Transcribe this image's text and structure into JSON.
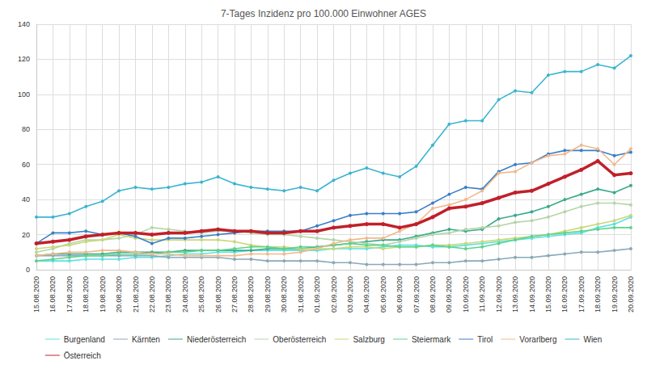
{
  "chart_data": {
    "type": "line",
    "title": "7-Tages Inzidenz pro 100.000 Einwohner AGES",
    "categories": [
      "15.08.2020",
      "16.08.2020",
      "17.08.2020",
      "18.08.2020",
      "19.08.2020",
      "20.08.2020",
      "21.08.2020",
      "22.08.2020",
      "23.08.2020",
      "24.08.2020",
      "25.08.2020",
      "26.08.2020",
      "27.08.2020",
      "28.08.2020",
      "29.08.2020",
      "30.08.2020",
      "31.08.2020",
      "01.09.2020",
      "02.09.2020",
      "03.09.2020",
      "04.09.2020",
      "05.09.2020",
      "06.09.2020",
      "07.09.2020",
      "08.09.2020",
      "09.09.2020",
      "10.09.2020",
      "11.09.2020",
      "12.09.2020",
      "13.09.2020",
      "14.09.2020",
      "15.09.2020",
      "16.09.2020",
      "17.09.2020",
      "18.09.2020",
      "19.09.2020",
      "20.09.2020"
    ],
    "series": [
      {
        "name": "Burgenland",
        "color": "#5ee0e0",
        "values": [
          5,
          5,
          5,
          6,
          6,
          6,
          7,
          7,
          8,
          9,
          9,
          10,
          10,
          11,
          11,
          11,
          11,
          11,
          12,
          12,
          12,
          13,
          14,
          14,
          13,
          13,
          14,
          15,
          16,
          17,
          18,
          19,
          20,
          21,
          24,
          26,
          30
        ]
      },
      {
        "name": "Kärnten",
        "color": "#8aa9b8",
        "values": [
          8,
          8,
          8,
          8,
          8,
          8,
          8,
          8,
          7,
          7,
          7,
          7,
          6,
          6,
          5,
          5,
          5,
          5,
          4,
          4,
          3,
          3,
          3,
          3,
          4,
          4,
          5,
          5,
          6,
          7,
          7,
          8,
          9,
          10,
          10,
          11,
          12
        ]
      },
      {
        "name": "Niederösterreich",
        "color": "#3aaa8a",
        "values": [
          8,
          9,
          9,
          9,
          9,
          10,
          10,
          10,
          10,
          11,
          11,
          11,
          11,
          11,
          12,
          12,
          12,
          13,
          14,
          15,
          16,
          17,
          17,
          19,
          21,
          23,
          22,
          23,
          29,
          31,
          33,
          36,
          40,
          43,
          46,
          44,
          48
        ]
      },
      {
        "name": "Oberösterreich",
        "color": "#b5d5a8",
        "values": [
          10,
          12,
          15,
          17,
          17,
          18,
          20,
          24,
          23,
          22,
          21,
          22,
          22,
          21,
          20,
          20,
          19,
          18,
          17,
          16,
          15,
          14,
          16,
          18,
          20,
          21,
          23,
          24,
          25,
          27,
          28,
          30,
          33,
          36,
          38,
          38,
          37
        ]
      },
      {
        "name": "Salzburg",
        "color": "#c8d87a",
        "values": [
          12,
          13,
          14,
          16,
          17,
          20,
          18,
          17,
          17,
          17,
          17,
          17,
          16,
          14,
          13,
          13,
          12,
          12,
          12,
          13,
          13,
          12,
          13,
          13,
          14,
          14,
          15,
          16,
          17,
          18,
          19,
          20,
          22,
          24,
          26,
          28,
          31
        ]
      },
      {
        "name": "Steiermark",
        "color": "#5ed38c",
        "values": [
          5,
          6,
          7,
          8,
          8,
          9,
          9,
          9,
          10,
          10,
          11,
          11,
          12,
          13,
          13,
          12,
          13,
          13,
          14,
          15,
          14,
          14,
          13,
          13,
          14,
          13,
          12,
          13,
          15,
          17,
          19,
          20,
          21,
          22,
          23,
          24,
          24
        ]
      },
      {
        "name": "Tirol",
        "color": "#3a7fc8",
        "values": [
          15,
          21,
          21,
          22,
          20,
          21,
          19,
          15,
          18,
          18,
          19,
          20,
          21,
          22,
          22,
          22,
          22,
          25,
          28,
          31,
          32,
          32,
          32,
          33,
          38,
          43,
          47,
          46,
          56,
          60,
          61,
          66,
          68,
          68,
          68,
          65,
          67
        ]
      },
      {
        "name": "Vorarlberg",
        "color": "#f2b88a",
        "values": [
          8,
          9,
          10,
          10,
          11,
          11,
          10,
          9,
          9,
          8,
          8,
          8,
          8,
          9,
          9,
          9,
          10,
          12,
          15,
          17,
          18,
          18,
          22,
          26,
          35,
          37,
          40,
          45,
          55,
          56,
          61,
          65,
          66,
          71,
          69,
          60,
          69
        ]
      },
      {
        "name": "Wien",
        "color": "#3bb5d0",
        "values": [
          30,
          30,
          32,
          36,
          39,
          45,
          47,
          46,
          47,
          49,
          50,
          53,
          49,
          47,
          46,
          45,
          47,
          45,
          51,
          55,
          58,
          55,
          53,
          59,
          71,
          83,
          85,
          85,
          97,
          102,
          101,
          111,
          113,
          113,
          117,
          115,
          122
        ]
      },
      {
        "name": "Österreich",
        "color": "#c0202a",
        "values": [
          15,
          16,
          17,
          19,
          20,
          21,
          21,
          20,
          21,
          21,
          22,
          23,
          22,
          22,
          21,
          21,
          22,
          22,
          24,
          25,
          26,
          26,
          24,
          26,
          30,
          35,
          36,
          38,
          41,
          44,
          45,
          49,
          53,
          57,
          62,
          54,
          55
        ]
      }
    ],
    "ylim": [
      0,
      140
    ],
    "yticks": [
      0,
      20,
      40,
      60,
      80,
      100,
      120,
      140
    ],
    "grid": true,
    "legend": "bottom",
    "marker": "circle"
  }
}
